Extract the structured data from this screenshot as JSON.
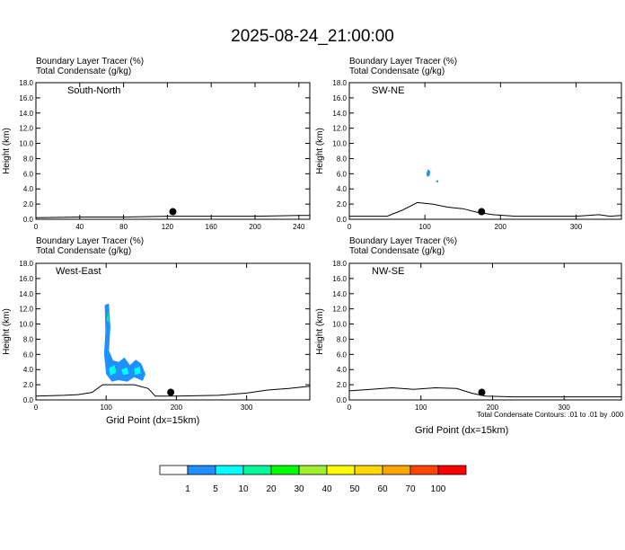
{
  "title": "2025-08-24_21:00:00",
  "colors": {
    "contour": "#000000",
    "terrain": "#000000",
    "tracer_palette": [
      "#ffffff",
      "#1e90ff",
      "#00ffff",
      "#00fa9a",
      "#00ff00",
      "#a0f030",
      "#ffff00",
      "#ffd700",
      "#ffa500",
      "#ff4500",
      "#ff0000"
    ]
  },
  "legend": {
    "labels": [
      "1",
      "5",
      "10",
      "20",
      "30",
      "40",
      "50",
      "60",
      "70",
      "100"
    ]
  },
  "footnote": "Total Condensate Contours: .01 to .01 by .000",
  "panel_header": {
    "line1": "Boundary Layer Tracer   (%)",
    "line2": "Total Condensate   (g/kg)"
  },
  "chart_data": [
    {
      "type": "contour",
      "panel": "South-North",
      "ylabel": "Height (km)",
      "xlabel": "",
      "xlim": [
        0,
        250
      ],
      "ylim": [
        0,
        18
      ],
      "xticks": [
        0,
        40,
        80,
        120,
        160,
        200,
        240
      ],
      "yticks": [
        0,
        2,
        4,
        6,
        8,
        10,
        12,
        14,
        16,
        18
      ],
      "ytick_labels": [
        "0.0",
        "2.0",
        "4.0",
        "6.0",
        "8.0",
        "10.0",
        "12.0",
        "14.0",
        "16.0",
        "18.0"
      ],
      "marker_point": {
        "x": 125,
        "y": 1.0
      },
      "terrain": [
        [
          0,
          0.2
        ],
        [
          40,
          0.3
        ],
        [
          80,
          0.3
        ],
        [
          120,
          0.4
        ],
        [
          160,
          0.4
        ],
        [
          200,
          0.4
        ],
        [
          240,
          0.5
        ],
        [
          250,
          0.5
        ]
      ],
      "tracer_fills": []
    },
    {
      "type": "contour",
      "panel": "SW-NE",
      "ylabel": "Height (km)",
      "xlabel": "",
      "xlim": [
        0,
        360
      ],
      "ylim": [
        0,
        18
      ],
      "xticks": [
        0,
        100,
        200,
        300
      ],
      "yticks": [
        0,
        2,
        4,
        6,
        8,
        10,
        12,
        14,
        16,
        18
      ],
      "ytick_labels": [
        "0.0",
        "2.0",
        "4.0",
        "6.0",
        "8.0",
        "10.0",
        "12.0",
        "14.0",
        "16.0",
        "18.0"
      ],
      "marker_point": {
        "x": 175,
        "y": 1.0
      },
      "terrain": [
        [
          0,
          0.4
        ],
        [
          50,
          0.4
        ],
        [
          70,
          1.2
        ],
        [
          90,
          2.2
        ],
        [
          110,
          2.0
        ],
        [
          130,
          1.6
        ],
        [
          150,
          1.4
        ],
        [
          170,
          0.9
        ],
        [
          190,
          0.6
        ],
        [
          220,
          0.4
        ],
        [
          260,
          0.4
        ],
        [
          300,
          0.4
        ],
        [
          330,
          0.6
        ],
        [
          345,
          0.4
        ],
        [
          360,
          0.5
        ]
      ],
      "tracer_fills": [
        {
          "category": 1,
          "points": [
            [
              102,
              6.0
            ],
            [
              104,
              6.6
            ],
            [
              107,
              6.3
            ],
            [
              106,
              5.7
            ],
            [
              103,
              5.6
            ]
          ]
        },
        {
          "category": 1,
          "points": [
            [
              114,
              5.0
            ],
            [
              118,
              5.2
            ],
            [
              117,
              4.8
            ]
          ]
        }
      ]
    },
    {
      "type": "contour",
      "panel": "West-East",
      "ylabel": "Height (km)",
      "xlabel": "Grid Point (dx=15km)",
      "xlim": [
        0,
        390
      ],
      "ylim": [
        0,
        18
      ],
      "xticks": [
        0,
        100,
        200,
        300
      ],
      "yticks": [
        0,
        2,
        4,
        6,
        8,
        10,
        12,
        14,
        16,
        18
      ],
      "ytick_labels": [
        "0.0",
        "2.0",
        "4.0",
        "6.0",
        "8.0",
        "10.0",
        "12.0",
        "14.0",
        "16.0",
        "18.0"
      ],
      "marker_point": {
        "x": 192,
        "y": 1.0
      },
      "terrain": [
        [
          0,
          0.5
        ],
        [
          40,
          0.6
        ],
        [
          60,
          0.7
        ],
        [
          80,
          1.0
        ],
        [
          95,
          2.0
        ],
        [
          105,
          2.0
        ],
        [
          115,
          2.0
        ],
        [
          140,
          2.0
        ],
        [
          160,
          1.5
        ],
        [
          170,
          0.5
        ],
        [
          200,
          0.5
        ],
        [
          260,
          0.6
        ],
        [
          300,
          0.9
        ],
        [
          330,
          1.3
        ],
        [
          360,
          1.5
        ],
        [
          390,
          1.8
        ]
      ],
      "tracer_fills": [
        {
          "category": 1,
          "points": [
            [
              98,
              12.5
            ],
            [
              104,
              12.7
            ],
            [
              106,
              9.5
            ],
            [
              104,
              6.5
            ],
            [
              110,
              5.2
            ],
            [
              118,
              5.0
            ],
            [
              126,
              5.6
            ],
            [
              134,
              4.6
            ],
            [
              142,
              5.3
            ],
            [
              150,
              4.8
            ],
            [
              156,
              3.4
            ],
            [
              152,
              2.5
            ],
            [
              140,
              3.0
            ],
            [
              130,
              2.4
            ],
            [
              118,
              2.6
            ],
            [
              108,
              2.4
            ],
            [
              100,
              3.4
            ],
            [
              97,
              6.0
            ],
            [
              99,
              9.0
            ]
          ]
        },
        {
          "category": 2,
          "points": [
            [
              104,
              4.2
            ],
            [
              112,
              4.6
            ],
            [
              114,
              3.6
            ],
            [
              106,
              3.2
            ]
          ]
        },
        {
          "category": 2,
          "points": [
            [
              122,
              4.0
            ],
            [
              130,
              4.3
            ],
            [
              132,
              3.4
            ],
            [
              124,
              3.3
            ]
          ]
        },
        {
          "category": 2,
          "points": [
            [
              140,
              4.1
            ],
            [
              148,
              4.4
            ],
            [
              149,
              3.5
            ],
            [
              141,
              3.3
            ]
          ]
        },
        {
          "category": 3,
          "points": [
            [
              101,
              10.5
            ],
            [
              103,
              11.8
            ],
            [
              104,
              10.2
            ]
          ]
        },
        {
          "category": 3,
          "points": [
            [
              110,
              4.0
            ],
            [
              114,
              4.2
            ],
            [
              113,
              3.7
            ]
          ]
        }
      ]
    },
    {
      "type": "contour",
      "panel": "NW-SE",
      "ylabel": "Height (km)",
      "xlabel": "",
      "xlim": [
        0,
        380
      ],
      "ylim": [
        0,
        18
      ],
      "xticks": [
        0,
        100,
        200,
        300
      ],
      "yticks": [
        0,
        2,
        4,
        6,
        8,
        10,
        12,
        14,
        16,
        18
      ],
      "ytick_labels": [
        "0.0",
        "2.0",
        "4.0",
        "6.0",
        "8.0",
        "10.0",
        "12.0",
        "14.0",
        "16.0",
        "18.0"
      ],
      "marker_point": {
        "x": 185,
        "y": 1.0
      },
      "terrain": [
        [
          0,
          1.2
        ],
        [
          30,
          1.4
        ],
        [
          60,
          1.6
        ],
        [
          90,
          1.4
        ],
        [
          120,
          1.6
        ],
        [
          150,
          1.5
        ],
        [
          170,
          0.9
        ],
        [
          190,
          0.5
        ],
        [
          230,
          0.4
        ],
        [
          280,
          0.4
        ],
        [
          330,
          0.4
        ],
        [
          380,
          0.4
        ]
      ],
      "tracer_fills": []
    }
  ]
}
